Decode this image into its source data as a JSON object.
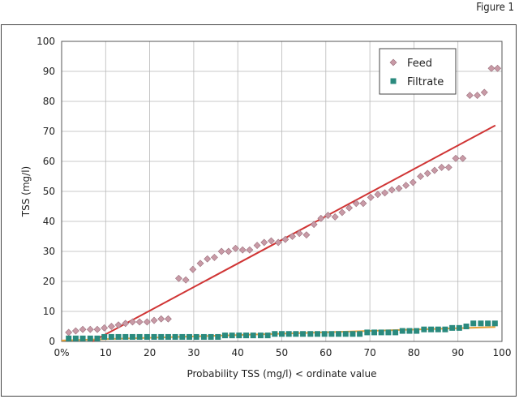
{
  "figure_label": "Figure 1",
  "chart_data": {
    "type": "scatter",
    "xlabel": "Probability TSS (mg/l) < ordinate value",
    "ylabel": "TSS (mg/l)",
    "xlim": [
      0,
      100
    ],
    "ylim": [
      0,
      100
    ],
    "x_ticks": [
      "0%",
      "10",
      "20",
      "30",
      "40",
      "50",
      "60",
      "70",
      "80",
      "90",
      "100"
    ],
    "y_ticks": [
      "0",
      "10",
      "20",
      "30",
      "40",
      "50",
      "60",
      "70",
      "80",
      "90",
      "100"
    ],
    "grid": true,
    "legend_position": "top-right",
    "series": [
      {
        "name": "Feed",
        "marker": "diamond",
        "color": "#c89aa6",
        "x": [
          1.6,
          3.2,
          4.8,
          6.5,
          8.1,
          9.7,
          11.3,
          12.9,
          14.5,
          16.1,
          17.7,
          19.4,
          21.0,
          22.6,
          24.2,
          26.6,
          28.2,
          29.8,
          31.5,
          33.1,
          34.7,
          36.3,
          37.9,
          39.5,
          41.1,
          42.7,
          44.4,
          46.0,
          47.6,
          49.2,
          50.8,
          52.4,
          54.0,
          55.6,
          57.3,
          58.9,
          60.5,
          62.1,
          63.7,
          65.3,
          66.9,
          68.5,
          70.2,
          71.8,
          73.4,
          75.0,
          76.6,
          78.2,
          79.8,
          81.5,
          83.1,
          84.7,
          86.3,
          87.9,
          89.5,
          91.1,
          92.7,
          94.4,
          96.0,
          97.6,
          99.0
        ],
        "y": [
          3,
          3.5,
          4,
          4,
          4,
          4.5,
          5,
          5.5,
          6,
          6.5,
          6.5,
          6.5,
          7,
          7.5,
          7.5,
          21,
          20.5,
          24,
          26,
          27.5,
          28,
          30,
          30,
          31,
          30.5,
          30.5,
          32,
          33,
          33.5,
          33,
          34,
          35,
          36,
          35.5,
          39,
          41,
          42,
          41.5,
          43,
          44.5,
          46,
          46,
          48,
          49,
          49.5,
          50.5,
          51,
          52,
          53,
          55,
          56,
          57,
          58,
          58,
          61,
          61,
          82,
          82,
          83,
          91,
          91
        ]
      },
      {
        "name": "Filtrate",
        "marker": "square",
        "color": "#2a8a7e",
        "x": [
          1.6,
          3.2,
          4.8,
          6.5,
          8.1,
          9.7,
          11.3,
          12.9,
          14.5,
          16.1,
          17.7,
          19.4,
          21.0,
          22.6,
          24.2,
          25.8,
          27.4,
          29.0,
          30.6,
          32.3,
          33.9,
          35.5,
          37.1,
          38.7,
          40.3,
          41.9,
          43.5,
          45.2,
          46.8,
          48.4,
          50.0,
          51.6,
          53.2,
          54.8,
          56.5,
          58.1,
          59.7,
          61.3,
          62.9,
          64.5,
          66.1,
          67.7,
          69.4,
          71.0,
          72.6,
          74.2,
          75.8,
          77.4,
          79.0,
          80.6,
          82.3,
          83.9,
          85.5,
          87.1,
          88.7,
          90.3,
          91.9,
          93.5,
          95.2,
          96.8,
          98.4
        ],
        "y": [
          1,
          1,
          1,
          1,
          1,
          1.5,
          1.5,
          1.5,
          1.5,
          1.5,
          1.5,
          1.5,
          1.5,
          1.5,
          1.5,
          1.5,
          1.5,
          1.5,
          1.5,
          1.5,
          1.5,
          1.5,
          2,
          2,
          2,
          2,
          2,
          2,
          2,
          2.5,
          2.5,
          2.5,
          2.5,
          2.5,
          2.5,
          2.5,
          2.5,
          2.5,
          2.5,
          2.5,
          2.5,
          2.5,
          3,
          3,
          3,
          3,
          3,
          3.5,
          3.5,
          3.5,
          4,
          4,
          4,
          4,
          4.5,
          4.5,
          5,
          6,
          6,
          6,
          6
        ]
      }
    ],
    "trendlines": [
      {
        "series": "Feed",
        "color": "#d03535",
        "x": [
          7,
          98.5
        ],
        "y": [
          0,
          72
        ]
      },
      {
        "series": "Filtrate",
        "color": "#e8a23a",
        "x": [
          0,
          98.5
        ],
        "y": [
          0.3,
          4.8
        ]
      }
    ]
  }
}
